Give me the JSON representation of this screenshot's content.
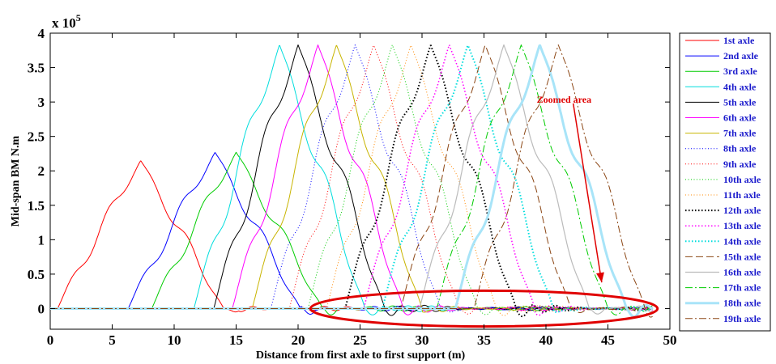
{
  "chart_data": {
    "type": "line",
    "title": "",
    "xlabel": "Distance from first axle to first support (m)",
    "ylabel": "Mid-span BM N.m",
    "exponent_label": "x 10",
    "exponent_power": "5",
    "xlim": [
      0,
      50
    ],
    "ylim": [
      -0.3,
      4
    ],
    "xticks": [
      "0",
      "5",
      "10",
      "15",
      "20",
      "25",
      "30",
      "35",
      "40",
      "45",
      "50"
    ],
    "yticks": [
      "0",
      "0.5",
      "1",
      "1.5",
      "2",
      "2.5",
      "3",
      "3.5",
      "4"
    ],
    "grid": false,
    "legend_position": "right-outside",
    "annotation": {
      "text": "Zoomed area",
      "color": "#e00000",
      "ellipse_center": [
        35,
        0.0
      ],
      "ellipse_radius_x": 14,
      "ellipse_radius_y": 0.26,
      "arrow_from": [
        42.2,
        2.98
      ],
      "arrow_to": [
        44.5,
        0.38
      ]
    },
    "series": [
      {
        "name": "1st axle",
        "color": "#ff0000",
        "style": "solid",
        "width": 1.0,
        "start": 0.6,
        "peak_x": 7.3,
        "end": 14.0,
        "peak": 2.15
      },
      {
        "name": "2nd axle",
        "color": "#0000ff",
        "style": "solid",
        "width": 1.0,
        "start": 6.3,
        "peak_x": 13.3,
        "end": 20.2,
        "peak": 2.27
      },
      {
        "name": "3rd axle",
        "color": "#00cc00",
        "style": "solid",
        "width": 1.0,
        "start": 8.2,
        "peak_x": 15.0,
        "end": 22.0,
        "peak": 2.27
      },
      {
        "name": "4th axle",
        "color": "#00dddd",
        "style": "solid",
        "width": 1.0,
        "start": 11.6,
        "peak_x": 18.5,
        "end": 25.4,
        "peak": 3.83
      },
      {
        "name": "5th axle",
        "color": "#000000",
        "style": "solid",
        "width": 1.0,
        "start": 13.2,
        "peak_x": 20.0,
        "end": 27.0,
        "peak": 3.83
      },
      {
        "name": "6th axle",
        "color": "#ff00ff",
        "style": "solid",
        "width": 1.0,
        "start": 14.7,
        "peak_x": 21.6,
        "end": 28.5,
        "peak": 3.83
      },
      {
        "name": "7th axle",
        "color": "#c8b400",
        "style": "solid",
        "width": 1.0,
        "start": 16.3,
        "peak_x": 23.1,
        "end": 30.0,
        "peak": 3.83
      },
      {
        "name": "8th axle",
        "color": "#0000ff",
        "style": "dotted",
        "width": 1.0,
        "start": 17.8,
        "peak_x": 24.6,
        "end": 31.5,
        "peak": 3.83
      },
      {
        "name": "9th axle",
        "color": "#ff0000",
        "style": "dotted",
        "width": 1.0,
        "start": 19.3,
        "peak_x": 26.1,
        "end": 33.0,
        "peak": 3.83
      },
      {
        "name": "10th axle",
        "color": "#00cc00",
        "style": "dotted",
        "width": 1.0,
        "start": 20.8,
        "peak_x": 27.6,
        "end": 34.5,
        "peak": 3.83
      },
      {
        "name": "11th axle",
        "color": "#ff8800",
        "style": "dotted",
        "width": 1.0,
        "start": 22.3,
        "peak_x": 29.1,
        "end": 36.0,
        "peak": 3.83
      },
      {
        "name": "12th axle",
        "color": "#000000",
        "style": "dotted",
        "width": 2.0,
        "start": 23.8,
        "peak_x": 30.7,
        "end": 37.6,
        "peak": 3.83
      },
      {
        "name": "13th axle",
        "color": "#ff00ff",
        "style": "dotted",
        "width": 1.5,
        "start": 25.3,
        "peak_x": 32.2,
        "end": 39.1,
        "peak": 3.83
      },
      {
        "name": "14th axle",
        "color": "#00dddd",
        "style": "dotted",
        "width": 2.0,
        "start": 26.8,
        "peak_x": 33.7,
        "end": 40.6,
        "peak": 3.83
      },
      {
        "name": "15th axle",
        "color": "#8b4513",
        "style": "dashed",
        "width": 1.0,
        "start": 28.3,
        "peak_x": 35.1,
        "end": 42.0,
        "peak": 3.83
      },
      {
        "name": "16th axle",
        "color": "#bbbbbb",
        "style": "solid",
        "width": 1.2,
        "start": 29.8,
        "peak_x": 36.6,
        "end": 43.5,
        "peak": 3.83
      },
      {
        "name": "17th axle",
        "color": "#00cc00",
        "style": "dashdot",
        "width": 1.0,
        "start": 31.2,
        "peak_x": 38.0,
        "end": 45.0,
        "peak": 3.83
      },
      {
        "name": "18th axle",
        "color": "#a8e4f8",
        "style": "solid",
        "width": 3.0,
        "start": 32.7,
        "peak_x": 39.5,
        "end": 46.5,
        "peak": 3.83
      },
      {
        "name": "19th axle",
        "color": "#8b4513",
        "style": "dashdot",
        "width": 1.0,
        "start": 34.2,
        "peak_x": 41.0,
        "end": 48.0,
        "peak": 3.83
      }
    ]
  }
}
